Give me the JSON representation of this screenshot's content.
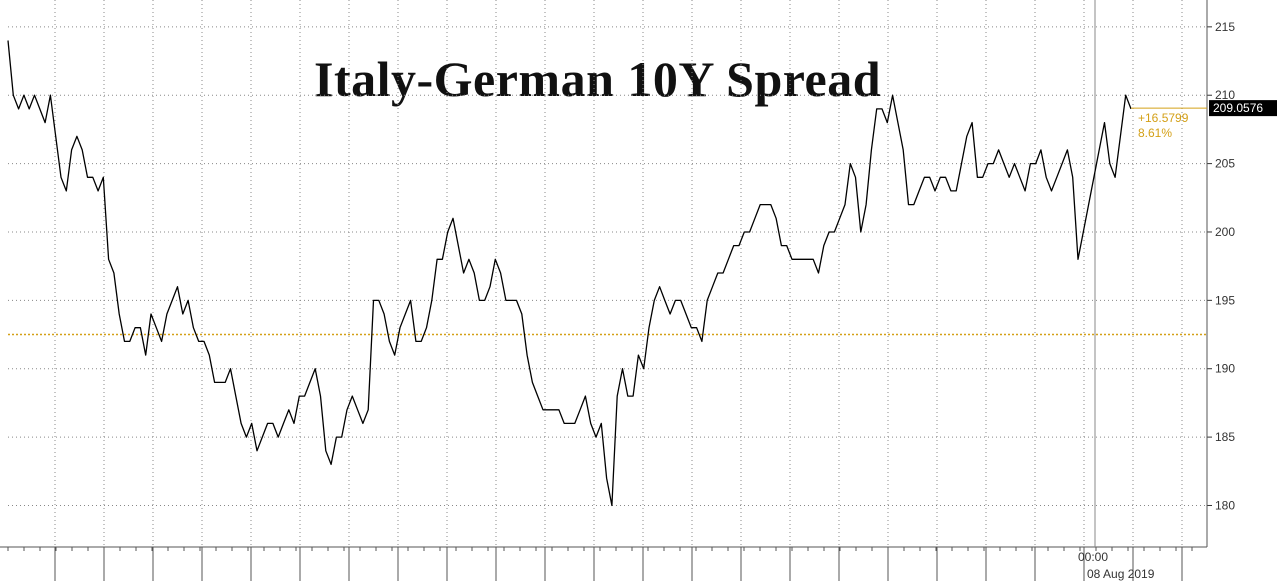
{
  "chart_data": {
    "type": "line",
    "title": "Italy-German 10Y Spread",
    "xlabel": "",
    "ylabel": "",
    "ylim": [
      177,
      217
    ],
    "y_ticks": [
      180,
      185,
      190,
      195,
      200,
      205,
      210,
      215
    ],
    "grid": true,
    "x_tick_labels": [
      "00:00",
      "08 Aug 2019"
    ],
    "reference_line": {
      "value": 192.5,
      "color": "#d4a017"
    },
    "last_value": {
      "value": 209.0576,
      "label": "209.0576"
    },
    "change": {
      "abs": "+16.5799",
      "pct": "8.61%"
    },
    "colors": {
      "line": "#000000",
      "reference": "#d4a017",
      "grid": "#888888"
    },
    "series": [
      {
        "values": [
          214,
          210,
          209,
          210,
          209,
          210,
          209,
          208,
          210,
          207,
          204,
          203,
          206,
          207,
          206,
          204,
          204,
          203,
          204,
          198,
          197,
          194,
          192,
          192,
          193,
          193,
          191,
          194,
          193,
          192,
          194,
          195,
          196,
          194,
          195,
          193,
          192,
          192,
          191,
          189,
          189,
          189,
          190,
          188,
          186,
          185,
          186,
          184,
          185,
          186,
          186,
          185,
          186,
          187,
          186,
          188,
          188,
          189,
          190,
          188,
          184,
          183,
          185,
          185,
          187,
          188,
          187,
          186,
          187,
          195,
          195,
          194,
          192,
          191,
          193,
          194,
          195,
          192,
          192,
          193,
          195,
          198,
          198,
          200,
          201,
          199,
          197,
          198,
          197,
          195,
          195,
          196,
          198,
          197,
          195,
          195,
          195,
          194,
          191,
          189,
          188,
          187,
          187,
          187,
          187,
          186,
          186,
          186,
          187,
          188,
          186,
          185,
          186,
          182,
          180,
          188,
          190,
          188,
          188,
          191,
          190,
          193,
          195,
          196,
          195,
          194,
          195,
          195,
          194,
          193,
          193,
          192,
          195,
          196,
          197,
          197,
          198,
          199,
          199,
          200,
          200,
          201,
          202,
          202,
          202,
          201,
          199,
          199,
          198,
          198,
          198,
          198,
          198,
          197,
          199,
          200,
          200,
          201,
          202,
          205,
          204,
          200,
          202,
          206,
          209,
          209,
          208,
          210,
          208,
          206,
          202,
          202,
          203,
          204,
          204,
          203,
          204,
          204,
          203,
          203,
          205,
          207,
          208,
          204,
          204,
          205,
          205,
          206,
          205,
          204,
          205,
          204,
          203,
          205,
          205,
          206,
          204,
          203,
          204,
          205,
          206,
          204,
          198,
          200,
          202,
          204,
          206,
          208,
          205,
          204,
          207,
          210,
          209
        ]
      }
    ]
  }
}
